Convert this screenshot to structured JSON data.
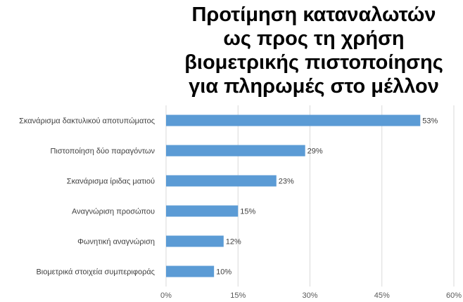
{
  "chart_data": {
    "type": "bar",
    "orientation": "horizontal",
    "title_lines": [
      "Προτίμηση καταναλωτών",
      "ως προς τη χρήση",
      "βιομετρικής πιστοποίησης",
      "για πληρωμές στο μέλλον"
    ],
    "categories": [
      "Σκανάρισμα δακτυλικού αποτυπώματος",
      "Πιστοποίηση δύο παραγόντων",
      "Σκανάρισμα ίριδας ματιού",
      "Αναγνώριση προσώπου",
      "Φωνητική αναγνώριση",
      "Βιομετρικά στοιχεία συμπεριφοράς"
    ],
    "values": [
      53,
      29,
      23,
      15,
      12,
      10
    ],
    "data_labels": [
      "53%",
      "29%",
      "23%",
      "15%",
      "12%",
      "10%"
    ],
    "xlim": [
      0,
      60
    ],
    "xticks": [
      0,
      15,
      30,
      45,
      60
    ],
    "xtick_labels": [
      "0%",
      "15%",
      "30%",
      "45%",
      "60%"
    ],
    "grid": true,
    "legend": "none",
    "bar_color": "#5B9BD5",
    "grid_color": "#D9D9D9"
  }
}
